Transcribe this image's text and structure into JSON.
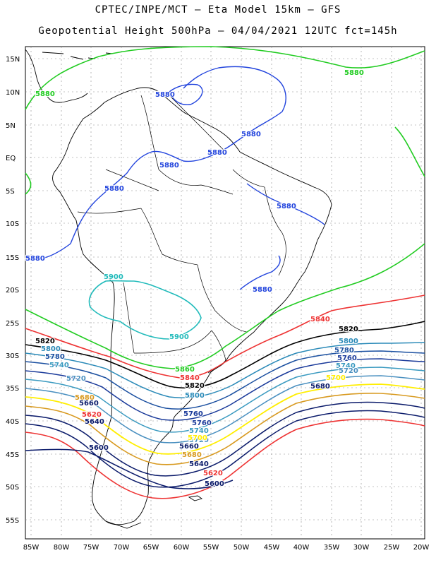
{
  "header": {
    "line1": "CPTEC/INPE/MCT –  Eta Model 15km – GFS",
    "line2": "Geopotential Height 500hPa – 04/04/2021 12UTC fct=145h"
  },
  "axes": {
    "lat_labels": [
      "15N",
      "10N",
      "5N",
      "EQ",
      "5S",
      "10S",
      "15S",
      "20S",
      "25S",
      "30S",
      "35S",
      "40S",
      "45S",
      "50S",
      "55S"
    ],
    "lon_labels": [
      "85W",
      "80W",
      "75W",
      "70W",
      "65W",
      "60W",
      "55W",
      "50W",
      "45W",
      "40W",
      "35W",
      "30W",
      "25W",
      "20W"
    ]
  },
  "contours": [
    {
      "level": "5880",
      "color": "#22cc22"
    },
    {
      "level": "5880",
      "color": "#2244dd"
    },
    {
      "level": "5900",
      "color": "#22bbbb"
    },
    {
      "level": "5860",
      "color": "#22cc22"
    },
    {
      "level": "5840",
      "color": "#ee3333"
    },
    {
      "level": "5820",
      "color": "#000000"
    },
    {
      "level": "5800",
      "color": "#2a8ab8"
    },
    {
      "level": "5780",
      "color": "#1a4fa0"
    },
    {
      "level": "5760",
      "color": "#1a3a9a"
    },
    {
      "level": "5740",
      "color": "#3a9ac0"
    },
    {
      "level": "5720",
      "color": "#4a90c0"
    },
    {
      "level": "5700",
      "color": "#ffee00"
    },
    {
      "level": "5680",
      "color": "#d89a20"
    },
    {
      "level": "5660",
      "color": "#0a1a6a"
    },
    {
      "level": "5640",
      "color": "#0a1a6a"
    },
    {
      "level": "5620",
      "color": "#ee3333"
    },
    {
      "level": "5600",
      "color": "#0a1a6a"
    }
  ],
  "labels": [
    {
      "text": "5880",
      "color": "#22cc22"
    },
    {
      "text": "5880",
      "color": "#22cc22"
    },
    {
      "text": "5880",
      "color": "#2244dd"
    },
    {
      "text": "5880",
      "color": "#2244dd"
    },
    {
      "text": "5880",
      "color": "#2244dd"
    },
    {
      "text": "5880",
      "color": "#2244dd"
    },
    {
      "text": "5880",
      "color": "#2244dd"
    },
    {
      "text": "5880",
      "color": "#2244dd"
    },
    {
      "text": "5880",
      "color": "#2244dd"
    },
    {
      "text": "5880",
      "color": "#2244dd"
    },
    {
      "text": "5900",
      "color": "#22bbbb"
    },
    {
      "text": "5900",
      "color": "#22bbbb"
    },
    {
      "text": "5860",
      "color": "#22cc22"
    },
    {
      "text": "5840",
      "color": "#ee3333"
    },
    {
      "text": "5840",
      "color": "#ee3333"
    },
    {
      "text": "5820",
      "color": "#000000"
    },
    {
      "text": "5820",
      "color": "#000000"
    },
    {
      "text": "5820",
      "color": "#000000"
    },
    {
      "text": "5800",
      "color": "#2a8ab8"
    },
    {
      "text": "5800",
      "color": "#2a8ab8"
    },
    {
      "text": "5800",
      "color": "#2a8ab8"
    },
    {
      "text": "5780",
      "color": "#1a4fa0"
    },
    {
      "text": "5780",
      "color": "#1a4fa0"
    },
    {
      "text": "5760",
      "color": "#1a3a9a"
    },
    {
      "text": "5760",
      "color": "#1a3a9a"
    },
    {
      "text": "5760",
      "color": "#1a3a9a"
    },
    {
      "text": "5740",
      "color": "#3a9ac0"
    },
    {
      "text": "5740",
      "color": "#3a9ac0"
    },
    {
      "text": "5740",
      "color": "#3a9ac0"
    },
    {
      "text": "5720",
      "color": "#4a90c0"
    },
    {
      "text": "5720",
      "color": "#4a90c0"
    },
    {
      "text": "5720",
      "color": "#4a90c0"
    },
    {
      "text": "5700",
      "color": "#ffee00"
    },
    {
      "text": "5700",
      "color": "#ffee00"
    },
    {
      "text": "5680",
      "color": "#d89a20"
    },
    {
      "text": "5680",
      "color": "#d89a20"
    },
    {
      "text": "5660",
      "color": "#0a1a6a"
    },
    {
      "text": "5660",
      "color": "#0a1a6a"
    },
    {
      "text": "5640",
      "color": "#0a1a6a"
    },
    {
      "text": "5640",
      "color": "#0a1a6a"
    },
    {
      "text": "5620",
      "color": "#ee3333"
    },
    {
      "text": "5620",
      "color": "#ee3333"
    },
    {
      "text": "5600",
      "color": "#0a1a6a"
    },
    {
      "text": "5600",
      "color": "#0a1a6a"
    },
    {
      "text": "5680",
      "color": "#0a1a6a"
    }
  ],
  "styles": {
    "grid_color": "#888888",
    "coast_color": "#000000",
    "frame_color": "#000000"
  }
}
